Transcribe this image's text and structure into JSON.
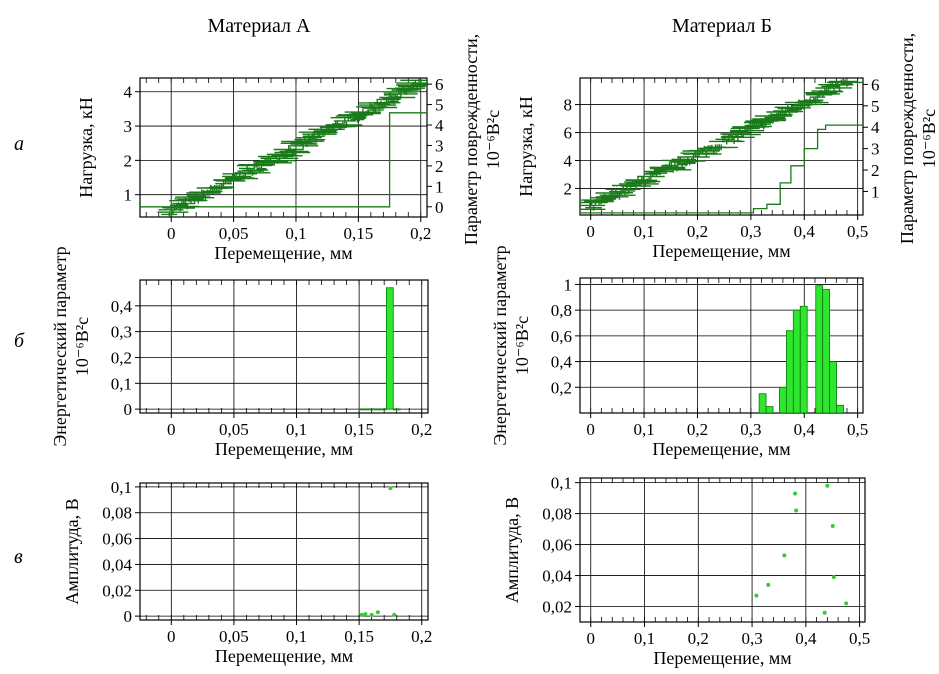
{
  "column_titles": {
    "left": "Материал А",
    "right": "Материал Б"
  },
  "row_labels": [
    "а",
    "б",
    "в"
  ],
  "colors": {
    "series": "#1a7a1a",
    "bars": "#2ee62e",
    "bar_edge": "#0a7a0a",
    "points": "#33cc33",
    "grid": "#000000"
  },
  "chart_data": [
    {
      "id": "a-left",
      "type": "line",
      "xlabel": "Перемещение, мм",
      "ylabel": "Нагрузка, кН",
      "y2label_line1": "Параметр поврежденности,",
      "y2label_line2": "10⁻⁶В²с",
      "xlim": [
        -0.025,
        0.205
      ],
      "ylim": [
        0.35,
        4.4
      ],
      "y2lim": [
        -0.5,
        6.3
      ],
      "xticks": [
        0,
        0.05,
        0.1,
        0.15,
        0.2
      ],
      "xticklabels": [
        "0",
        "0,05",
        "0,1",
        "0,15",
        "0,2"
      ],
      "yticks": [
        1,
        2,
        3,
        4
      ],
      "yticklabels": [
        "1",
        "2",
        "3",
        "4"
      ],
      "y2ticks": [
        0,
        1,
        2,
        3,
        4,
        5,
        6
      ],
      "y2ticklabels": [
        "0",
        "1",
        "2",
        "3",
        "4",
        "5",
        "6"
      ],
      "grid": true,
      "series": [
        {
          "axis": "y",
          "style": "noisy",
          "x": [
            -0.003,
            0.2
          ],
          "y": [
            0.45,
            4.25
          ]
        },
        {
          "axis": "y2",
          "style": "step",
          "x": [
            -0.025,
            0.175,
            0.175,
            0.205
          ],
          "y": [
            0,
            0,
            4.6,
            4.6
          ]
        }
      ]
    },
    {
      "id": "a-right",
      "type": "line",
      "xlabel": "Перемещение, мм",
      "ylabel": "Нагрузка, кН",
      "y2label_line1": "Параметр поврежденности,",
      "y2label_line2": "10⁻⁶В²с",
      "xlim": [
        -0.02,
        0.51
      ],
      "ylim": [
        0.1,
        9.9
      ],
      "y2lim": [
        -0.1,
        6.3
      ],
      "xticks": [
        0,
        0.1,
        0.2,
        0.3,
        0.4,
        0.5
      ],
      "xticklabels": [
        "0",
        "0,1",
        "0,2",
        "0,3",
        "0,4",
        "0,5"
      ],
      "yticks": [
        2,
        4,
        6,
        8
      ],
      "yticklabels": [
        "2",
        "4",
        "6",
        "8"
      ],
      "y2ticks": [
        1,
        2,
        3,
        4,
        5,
        6
      ],
      "y2ticklabels": [
        "1",
        "2",
        "3",
        "4",
        "5",
        "6"
      ],
      "grid": true,
      "series": [
        {
          "axis": "y",
          "style": "noisy",
          "x": [
            -0.005,
            0.48
          ],
          "y": [
            0.6,
            9.6
          ]
        },
        {
          "axis": "y2",
          "style": "step",
          "x": [
            -0.02,
            0.305,
            0.305,
            0.33,
            0.33,
            0.355,
            0.355,
            0.375,
            0.375,
            0.4,
            0.4,
            0.425,
            0.425,
            0.44,
            0.44,
            0.51
          ],
          "y": [
            0,
            0,
            0.2,
            0.2,
            0.4,
            0.4,
            1.4,
            1.4,
            2.2,
            2.2,
            3.0,
            3.0,
            3.9,
            3.9,
            4.1,
            4.1
          ]
        }
      ]
    },
    {
      "id": "b-left",
      "type": "bar",
      "xlabel": "Перемещение, мм",
      "ylabel": "Энергетический параметр",
      "ylabel2": "10⁻⁶В²с",
      "xlim": [
        -0.025,
        0.205
      ],
      "ylim": [
        -0.015,
        0.5
      ],
      "xticks": [
        0,
        0.05,
        0.1,
        0.15,
        0.2
      ],
      "xticklabels": [
        "0",
        "0,05",
        "0,1",
        "0,15",
        "0,2"
      ],
      "yticks": [
        0,
        0.1,
        0.2,
        0.3,
        0.4
      ],
      "yticklabels": [
        "0",
        "0,1",
        "0,2",
        "0,3",
        "0,4"
      ],
      "grid": true,
      "bar_width": 0.0055,
      "bars": {
        "x": [
          0.1525,
          0.158,
          0.1635,
          0.169,
          0.1745,
          0.18
        ],
        "values": [
          0.001,
          0.001,
          0.001,
          0.001,
          0.47,
          0.001
        ]
      }
    },
    {
      "id": "b-right",
      "type": "bar",
      "xlabel": "Перемещение, мм",
      "ylabel": "Энергетический параметр",
      "ylabel2": "10⁻⁶В²с",
      "xlim": [
        -0.02,
        0.51
      ],
      "ylim": [
        0,
        1.05
      ],
      "xticks": [
        0,
        0.1,
        0.2,
        0.3,
        0.4,
        0.5
      ],
      "xticklabels": [
        "0",
        "0,1",
        "0,2",
        "0,3",
        "0,4",
        "0,5"
      ],
      "yticks": [
        0.2,
        0.4,
        0.6,
        0.8,
        1
      ],
      "yticklabels": [
        "0,2",
        "0,4",
        "0,6",
        "0,8",
        "1"
      ],
      "grid": true,
      "bar_width": 0.013,
      "bars": {
        "x": [
          0.322,
          0.335,
          0.36,
          0.373,
          0.386,
          0.399,
          0.428,
          0.441,
          0.454,
          0.467
        ],
        "values": [
          0.15,
          0.05,
          0.2,
          0.64,
          0.8,
          0.83,
          0.99,
          0.96,
          0.4,
          0.06
        ]
      }
    },
    {
      "id": "c-left",
      "type": "scatter",
      "xlabel": "Перемещение, мм",
      "ylabel": "Амплитуда, В",
      "xlim": [
        -0.025,
        0.205
      ],
      "ylim": [
        -0.003,
        0.103
      ],
      "xticks": [
        0,
        0.05,
        0.1,
        0.15,
        0.2
      ],
      "xticklabels": [
        "0",
        "0,05",
        "0,1",
        "0,15",
        "0,2"
      ],
      "yticks": [
        0,
        0.02,
        0.04,
        0.06,
        0.08,
        0.1
      ],
      "yticklabels": [
        "0",
        "0,02",
        "0,04",
        "0,06",
        "0,08",
        "0,1"
      ],
      "grid": true,
      "points": {
        "x": [
          0.152,
          0.155,
          0.16,
          0.165,
          0.175,
          0.178
        ],
        "y": [
          0.001,
          0.0015,
          0.001,
          0.003,
          0.099,
          0.001
        ]
      }
    },
    {
      "id": "c-right",
      "type": "scatter",
      "xlabel": "Перемещение, мм",
      "ylabel": "Амплитуда, В",
      "xlim": [
        -0.02,
        0.51
      ],
      "ylim": [
        0.01,
        0.103
      ],
      "xticks": [
        0,
        0.1,
        0.2,
        0.3,
        0.4,
        0.5
      ],
      "xticklabels": [
        "0",
        "0,1",
        "0,2",
        "0,3",
        "0,4",
        "0,5"
      ],
      "yticks": [
        0.02,
        0.04,
        0.06,
        0.08,
        0.1
      ],
      "yticklabels": [
        "0,02",
        "0,04",
        "0,06",
        "0,08",
        "0,1"
      ],
      "grid": true,
      "points": {
        "x": [
          0.308,
          0.33,
          0.36,
          0.38,
          0.382,
          0.435,
          0.44,
          0.45,
          0.452,
          0.475
        ],
        "y": [
          0.027,
          0.034,
          0.053,
          0.093,
          0.082,
          0.016,
          0.098,
          0.072,
          0.039,
          0.022
        ]
      }
    }
  ]
}
